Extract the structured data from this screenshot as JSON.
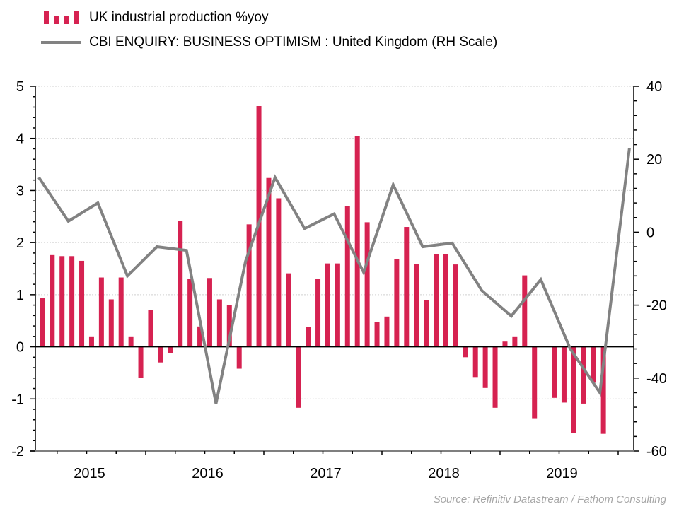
{
  "colors": {
    "bars": "#d62251",
    "line": "#828282",
    "gridline": "#d0d0d0",
    "axis": "#000000",
    "source_text": "#a6a6a6"
  },
  "legend": {
    "items": [
      {
        "label": "UK industrial production %yoy",
        "type": "bar",
        "icon": "bar-series-icon"
      },
      {
        "label": "CBI ENQUIRY: BUSINESS OPTIMISM : United Kingdom (RH Scale)",
        "type": "line",
        "icon": "line-series-icon"
      }
    ]
  },
  "source": "Source: Refinitiv Datastream / Fathom Consulting",
  "chart_data": {
    "type": "bar",
    "title": "",
    "xlabel": "",
    "ylabel": "",
    "legend_position": "top-left",
    "grid": true,
    "x_tick_labels": [
      "2015",
      "2016",
      "2017",
      "2018",
      "2019"
    ],
    "x_range": [
      "2015-01",
      "2019-12"
    ],
    "left_axis": {
      "ylim": [
        -2,
        5
      ],
      "ticks": [
        5,
        4,
        3,
        2,
        1,
        0,
        -1,
        -2
      ],
      "tick_labels": [
        "5",
        "4",
        "3",
        "2",
        "1",
        "0",
        "-1",
        "-2"
      ]
    },
    "right_axis": {
      "ylim": [
        -60,
        40
      ],
      "ticks": [
        40,
        20,
        0,
        -20,
        -40,
        -60
      ],
      "tick_labels": [
        "40",
        "20",
        "0",
        "-20",
        "-40",
        "-60"
      ]
    },
    "series": [
      {
        "name": "UK industrial production %yoy",
        "type": "bar",
        "axis": "left",
        "frequency": "monthly",
        "x": [
          "2015-01",
          "2015-02",
          "2015-03",
          "2015-04",
          "2015-05",
          "2015-06",
          "2015-07",
          "2015-08",
          "2015-09",
          "2015-10",
          "2015-11",
          "2015-12",
          "2016-01",
          "2016-02",
          "2016-03",
          "2016-04",
          "2016-05",
          "2016-06",
          "2016-07",
          "2016-08",
          "2016-09",
          "2016-10",
          "2016-11",
          "2016-12",
          "2017-01",
          "2017-02",
          "2017-03",
          "2017-04",
          "2017-05",
          "2017-06",
          "2017-07",
          "2017-08",
          "2017-09",
          "2017-10",
          "2017-11",
          "2017-12",
          "2018-01",
          "2018-02",
          "2018-03",
          "2018-04",
          "2018-05",
          "2018-06",
          "2018-07",
          "2018-08",
          "2018-09",
          "2018-10",
          "2018-11",
          "2018-12",
          "2019-01",
          "2019-02",
          "2019-03",
          "2019-04",
          "2019-05",
          "2019-06",
          "2019-07",
          "2019-08",
          "2019-09",
          "2019-10",
          "2019-11"
        ],
        "values": [
          0.93,
          0.93,
          1.76,
          1.74,
          1.74,
          1.65,
          0.2,
          1.33,
          0.91,
          1.33,
          0.2,
          -0.6,
          0.71,
          -0.3,
          -0.12,
          2.42,
          1.31,
          0.39,
          1.32,
          0.91,
          0.8,
          -0.42,
          2.35,
          4.62,
          3.24,
          2.85,
          1.41,
          -1.17,
          0.38,
          1.31,
          1.6,
          1.6,
          2.7,
          4.04,
          2.39,
          0.48,
          0.58,
          1.69,
          2.3,
          1.59,
          0.9,
          1.78,
          1.78,
          1.58,
          -0.2,
          -0.58,
          -0.79,
          -1.17,
          0.1,
          0.2,
          1.37,
          -1.37,
          0.0,
          -0.98,
          -1.07,
          -1.66,
          -1.09,
          -0.69,
          -1.67
        ]
      },
      {
        "name": "CBI ENQUIRY: BUSINESS OPTIMISM : United Kingdom (RH Scale)",
        "type": "line",
        "axis": "right",
        "frequency": "quarterly",
        "x": [
          "2015-02",
          "2015-05",
          "2015-08",
          "2015-11",
          "2016-02",
          "2016-05",
          "2016-08",
          "2016-11",
          "2017-02",
          "2017-05",
          "2017-08",
          "2017-11",
          "2018-02",
          "2018-05",
          "2018-08",
          "2018-11",
          "2019-02",
          "2019-05",
          "2019-08",
          "2019-11",
          "2020-02"
        ],
        "values": [
          15,
          3,
          8,
          -12,
          -4,
          -5,
          -47,
          -8,
          15,
          1,
          5,
          -11,
          13,
          -4,
          -3,
          -16,
          -23,
          -13,
          -32,
          -44,
          23
        ]
      }
    ]
  }
}
